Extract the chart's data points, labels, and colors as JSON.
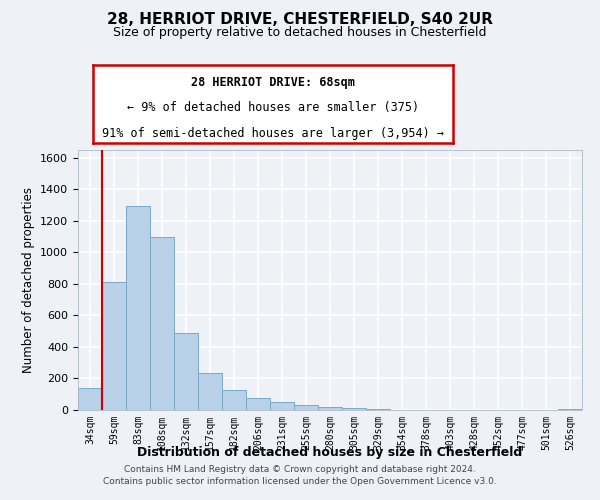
{
  "title": "28, HERRIOT DRIVE, CHESTERFIELD, S40 2UR",
  "subtitle": "Size of property relative to detached houses in Chesterfield",
  "xlabel": "Distribution of detached houses by size in Chesterfield",
  "ylabel": "Number of detached properties",
  "bar_labels": [
    "34sqm",
    "59sqm",
    "83sqm",
    "108sqm",
    "132sqm",
    "157sqm",
    "182sqm",
    "206sqm",
    "231sqm",
    "255sqm",
    "280sqm",
    "305sqm",
    "329sqm",
    "354sqm",
    "378sqm",
    "403sqm",
    "428sqm",
    "452sqm",
    "477sqm",
    "501sqm",
    "526sqm"
  ],
  "bar_values": [
    140,
    810,
    1295,
    1095,
    490,
    235,
    130,
    78,
    50,
    30,
    20,
    10,
    5,
    2,
    0,
    0,
    0,
    0,
    0,
    0,
    8
  ],
  "bar_color": "#b8d0e8",
  "bar_edge_color": "#7aaac8",
  "vline_x": 0.5,
  "vline_color": "#cc0000",
  "ylim": [
    0,
    1650
  ],
  "yticks": [
    0,
    200,
    400,
    600,
    800,
    1000,
    1200,
    1400,
    1600
  ],
  "annotation_title": "28 HERRIOT DRIVE: 68sqm",
  "annotation_line1": "← 9% of detached houses are smaller (375)",
  "annotation_line2": "91% of semi-detached houses are larger (3,954) →",
  "annotation_box_color": "#ffffff",
  "annotation_box_edge": "#cc0000",
  "footer_line1": "Contains HM Land Registry data © Crown copyright and database right 2024.",
  "footer_line2": "Contains public sector information licensed under the Open Government Licence v3.0.",
  "background_color": "#eef2f7",
  "grid_color": "#ffffff"
}
